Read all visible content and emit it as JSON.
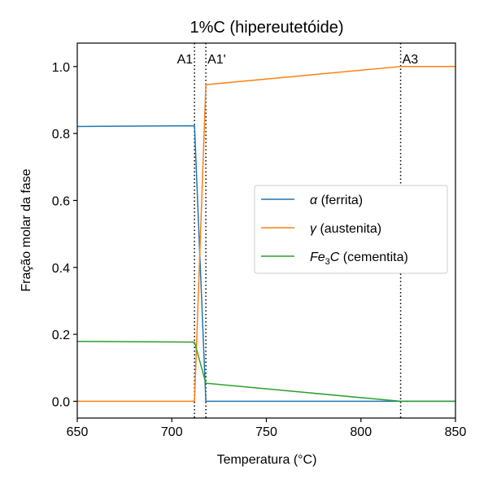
{
  "chart_data": {
    "type": "line",
    "title": "1%C (hipereutetóide)",
    "xlabel": "Temperatura (°C)",
    "ylabel": "Fração molar da fase",
    "xlim": [
      650,
      850
    ],
    "ylim": [
      -0.05,
      1.07
    ],
    "xticks": [
      650,
      700,
      750,
      800,
      850
    ],
    "xtick_labels": [
      "650",
      "700",
      "750",
      "800",
      "850"
    ],
    "yticks": [
      0.0,
      0.2,
      0.4,
      0.6,
      0.8,
      1.0
    ],
    "ytick_labels": [
      "0.0",
      "0.2",
      "0.4",
      "0.6",
      "0.8",
      "1.0"
    ],
    "grid": false,
    "legend_position": "center-right",
    "series": [
      {
        "name_main": "α",
        "name_rest": " (ferrita)",
        "color": "#1f77b4",
        "x": [
          650,
          712,
          718,
          850
        ],
        "y": [
          0.821,
          0.823,
          0.0,
          0.0
        ]
      },
      {
        "name_main": "γ",
        "name_rest": " (austenita)",
        "color": "#ff7f0e",
        "x": [
          650,
          712,
          718,
          821,
          850
        ],
        "y": [
          0.0,
          0.0,
          0.946,
          1.0,
          1.0
        ]
      },
      {
        "name_main": "Fe",
        "name_sub": "3",
        "name_main2": "C",
        "name_rest": " (cementita)",
        "color": "#2ca02c",
        "x": [
          650,
          712,
          718,
          821,
          850
        ],
        "y": [
          0.179,
          0.177,
          0.054,
          0.0,
          0.0
        ]
      }
    ],
    "vlines": [
      {
        "x": 712,
        "label": "A1",
        "label_side": "left"
      },
      {
        "x": 718,
        "label": "A1'",
        "label_side": "right"
      },
      {
        "x": 821,
        "label": "A3",
        "label_side": "right"
      }
    ]
  }
}
